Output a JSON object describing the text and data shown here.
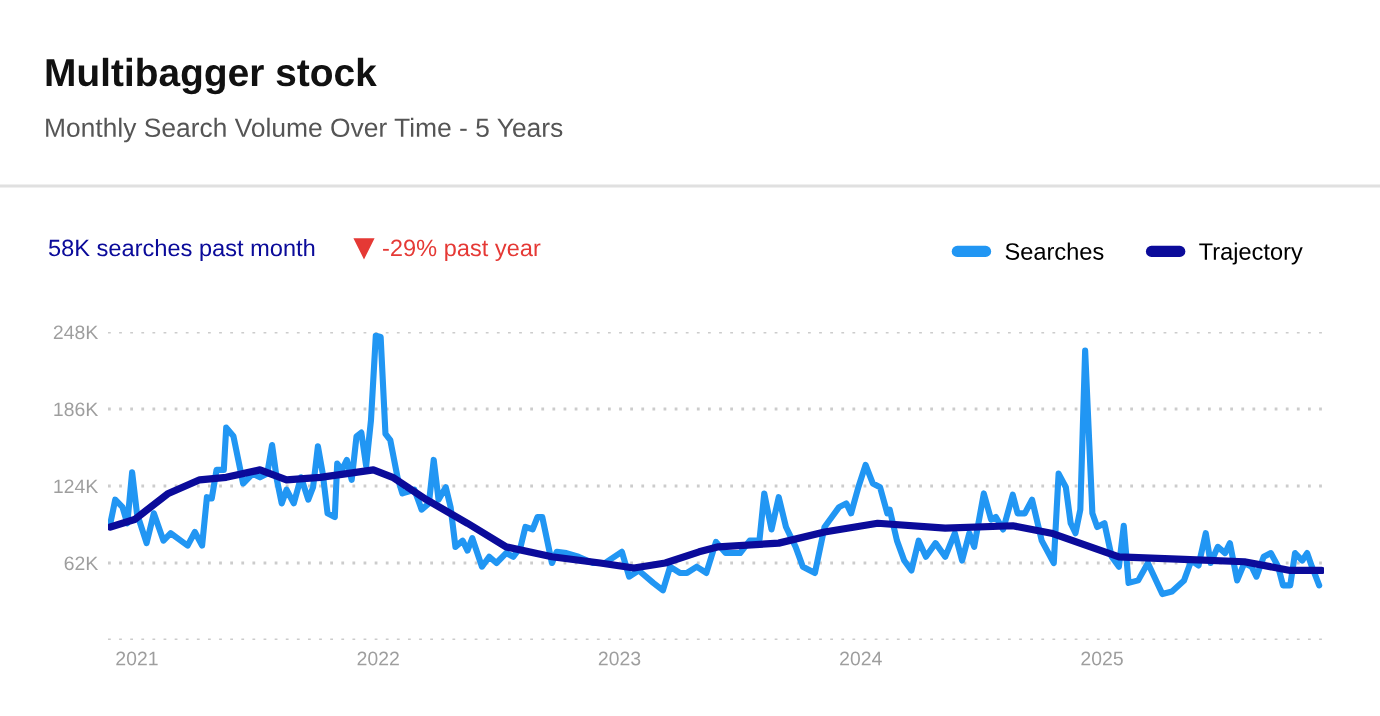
{
  "chart_data": {
    "type": "line",
    "title": "Multibagger stock",
    "subtitle": "Monthly Search Volume Over Time - 5 Years",
    "annotations": [
      "58K searches past month",
      "-29% past year"
    ],
    "xlim": [
      2020.88,
      2025.92
    ],
    "xticks": [
      2021,
      2022,
      2023,
      2024,
      2025
    ],
    "ylim": [
      0,
      248
    ],
    "yticks": [
      {
        "value": 0,
        "label": null
      },
      {
        "value": 62,
        "label": "62K"
      },
      {
        "value": 124,
        "label": "124K"
      },
      {
        "value": 186,
        "label": "186K"
      },
      {
        "value": 248,
        "label": "248K"
      }
    ],
    "grid": "y",
    "legend": "top right",
    "marker": "none",
    "line_style": "solid",
    "series": [
      {
        "name": "Searches",
        "color": "#2196f3",
        "x": [
          2020.89,
          2020.91,
          2020.94,
          2020.96,
          2020.98,
          2021.0,
          2021.04,
          2021.07,
          2021.11,
          2021.14,
          2021.21,
          2021.24,
          2021.27,
          2021.29,
          2021.31,
          2021.33,
          2021.36,
          2021.37,
          2021.4,
          2021.42,
          2021.44,
          2021.48,
          2021.51,
          2021.54,
          2021.56,
          2021.58,
          2021.6,
          2021.62,
          2021.65,
          2021.68,
          2021.71,
          2021.73,
          2021.75,
          2021.77,
          2021.79,
          2021.82,
          2021.83,
          2021.85,
          2021.87,
          2021.89,
          2021.91,
          2021.93,
          2021.95,
          2021.97,
          2021.99,
          2022.01,
          2022.03,
          2022.05,
          2022.08,
          2022.1,
          2022.15,
          2022.18,
          2022.21,
          2022.23,
          2022.25,
          2022.28,
          2022.3,
          2022.32,
          2022.35,
          2022.37,
          2022.39,
          2022.43,
          2022.46,
          2022.49,
          2022.53,
          2022.56,
          2022.59,
          2022.61,
          2022.64,
          2022.66,
          2022.68,
          2022.72,
          2022.74,
          2022.78,
          2022.83,
          2022.89,
          2022.94,
          2023.01,
          2023.04,
          2023.08,
          2023.14,
          2023.18,
          2023.21,
          2023.25,
          2023.28,
          2023.32,
          2023.36,
          2023.4,
          2023.44,
          2023.5,
          2023.54,
          2023.58,
          2023.6,
          2023.63,
          2023.66,
          2023.69,
          2023.73,
          2023.76,
          2023.81,
          2023.85,
          2023.91,
          2023.94,
          2023.96,
          2023.99,
          2024.02,
          2024.05,
          2024.08,
          2024.11,
          2024.12,
          2024.15,
          2024.18,
          2024.21,
          2024.24,
          2024.27,
          2024.31,
          2024.35,
          2024.39,
          2024.42,
          2024.45,
          2024.47,
          2024.51,
          2024.54,
          2024.56,
          2024.59,
          2024.63,
          2024.65,
          2024.68,
          2024.71,
          2024.75,
          2024.8,
          2024.82,
          2024.85,
          2024.87,
          2024.89,
          2024.91,
          2024.93,
          2024.96,
          2024.98,
          2025.01,
          2025.04,
          2025.07,
          2025.09,
          2025.11,
          2025.15,
          2025.19,
          2025.25,
          2025.29,
          2025.34,
          2025.37,
          2025.4,
          2025.43,
          2025.45,
          2025.48,
          2025.51,
          2025.53,
          2025.56,
          2025.59,
          2025.62,
          2025.64,
          2025.67,
          2025.7,
          2025.73,
          2025.75,
          2025.78,
          2025.8,
          2025.83,
          2025.85,
          2025.87,
          2025.9
        ],
        "values": [
          94,
          113,
          107,
          94,
          135,
          102,
          78,
          102,
          80,
          86,
          76,
          87,
          76,
          115,
          114,
          137,
          137,
          171,
          164,
          145,
          126,
          134,
          131,
          134,
          157,
          129,
          110,
          121,
          110,
          131,
          113,
          123,
          156,
          134,
          102,
          99,
          142,
          137,
          145,
          129,
          164,
          167,
          140,
          177,
          245,
          244,
          166,
          161,
          131,
          118,
          121,
          105,
          110,
          145,
          113,
          123,
          107,
          75,
          80,
          72,
          82,
          59,
          67,
          62,
          70,
          67,
          75,
          91,
          89,
          99,
          99,
          62,
          71,
          70,
          67,
          62,
          62,
          71,
          51,
          56,
          46,
          40,
          59,
          54,
          54,
          59,
          54,
          79,
          70,
          70,
          80,
          80,
          118,
          89,
          115,
          91,
          75,
          59,
          54,
          91,
          107,
          110,
          102,
          123,
          141,
          126,
          123,
          102,
          105,
          80,
          64,
          56,
          80,
          67,
          78,
          67,
          86,
          64,
          86,
          75,
          118,
          97,
          99,
          89,
          117,
          102,
          102,
          113,
          80,
          62,
          134,
          123,
          94,
          86,
          105,
          233,
          102,
          91,
          94,
          67,
          59,
          92,
          46,
          48,
          62,
          37,
          39,
          48,
          64,
          60,
          86,
          62,
          75,
          70,
          78,
          48,
          62,
          59,
          51,
          67,
          70,
          59,
          44,
          44,
          70,
          64,
          70,
          59,
          44
        ]
      },
      {
        "name": "Trajectory",
        "color": "#0b0b9a",
        "x": [
          2020.89,
          2020.99,
          2021.13,
          2021.26,
          2021.37,
          2021.51,
          2021.62,
          2021.76,
          2021.98,
          2022.06,
          2022.2,
          2022.37,
          2022.53,
          2022.72,
          2022.92,
          2023.06,
          2023.19,
          2023.33,
          2023.41,
          2023.66,
          2023.85,
          2024.07,
          2024.35,
          2024.63,
          2024.79,
          2025.07,
          2025.34,
          2025.59,
          2025.78,
          2025.91
        ],
        "values": [
          91,
          97,
          118,
          129,
          131,
          137,
          129,
          131,
          137,
          131,
          113,
          94,
          75,
          67,
          62,
          58,
          62,
          71,
          75,
          78,
          87,
          94,
          90,
          92,
          86,
          67,
          65,
          63,
          56,
          56
        ]
      }
    ]
  }
}
